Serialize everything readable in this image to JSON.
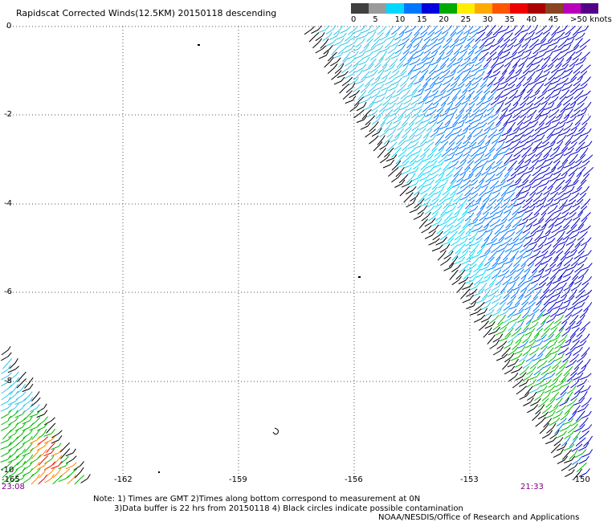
{
  "header": {
    "title": "Rapidscat Corrected Winds(12.5KM) 20150118 descending"
  },
  "colorbar": {
    "labels": [
      "0",
      "5",
      "10",
      "15",
      "20",
      "25",
      "30",
      "35",
      "40",
      "45",
      ">50 knots"
    ],
    "colors": [
      "#404040",
      "#9a9a9a",
      "#00d8ff",
      "#0077ff",
      "#0000dd",
      "#00aa00",
      "#ffee00",
      "#ffaa00",
      "#ff5500",
      "#ee0000",
      "#aa0000",
      "#884422",
      "#bb00bb",
      "#550088"
    ]
  },
  "axes": {
    "lat_labels": [
      "0",
      "-2",
      "-4",
      "-6",
      "-8",
      "-10"
    ],
    "lon_labels": [
      "-165",
      "-162",
      "-159",
      "-156",
      "-153",
      "-150"
    ]
  },
  "times": {
    "left": "23:08",
    "right": "21:33"
  },
  "notes": {
    "line1": "Note: 1) Times are GMT 2)Times along bottom correspond to measurement at 0N",
    "line2": "3)Data buffer is 22 hrs from 20150118 4) Black circles indicate possible contamination",
    "credit": "NOAA/NESDIS/Office of Research and Applications"
  },
  "palette": {
    "black": "#000000",
    "cyan": "#00d8ff",
    "teal": "#33c4e8",
    "blue": "#0077ff",
    "navy": "#0000cc",
    "green": "#00bb00",
    "orange": "#ff8800",
    "red": "#ee0000"
  }
}
